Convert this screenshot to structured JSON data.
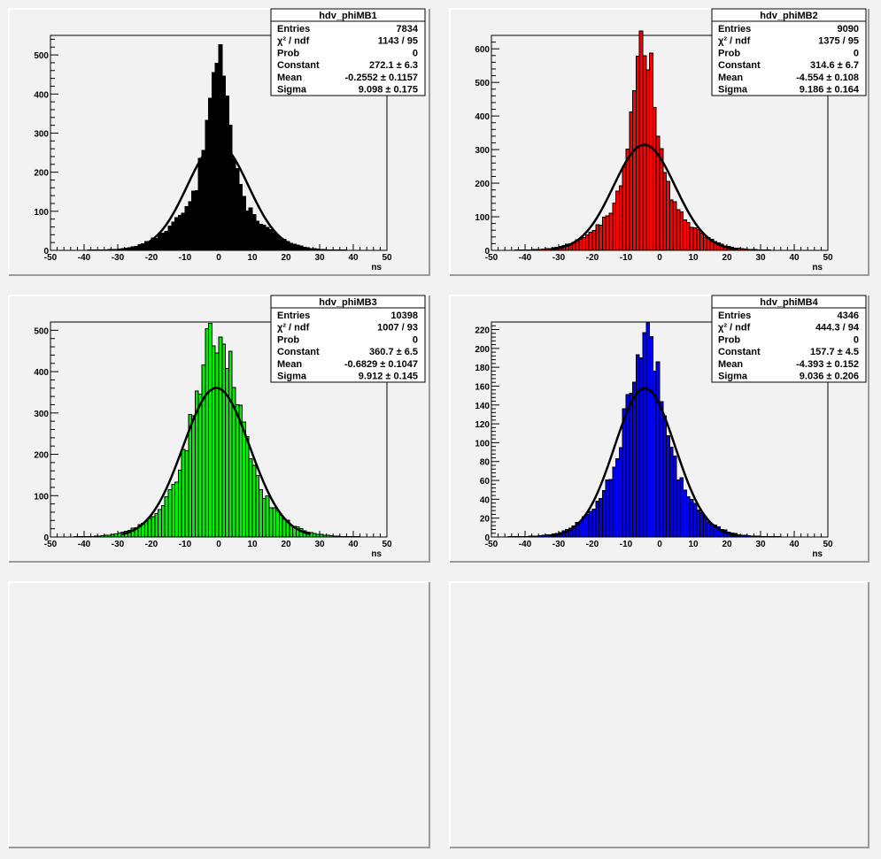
{
  "chart_data": [
    {
      "type": "histogram",
      "name": "hdv_phiMB1",
      "color": "#000000",
      "xlabel": "ns",
      "xlim": [
        -50,
        50
      ],
      "ylim": [
        0,
        550
      ],
      "yticks": [
        0,
        100,
        200,
        300,
        400,
        500
      ],
      "xticks": [
        -50,
        -40,
        -30,
        -20,
        -10,
        0,
        10,
        20,
        30,
        40,
        50
      ],
      "bin_width": 1,
      "center": -0.2552,
      "peak": 520,
      "core_sigma": 3.0,
      "fit": {
        "constant": 272.1,
        "mean": -0.2552,
        "sigma": 9.098
      },
      "stats": [
        {
          "label": "Entries",
          "value": "7834"
        },
        {
          "label": "χ² / ndf",
          "value": "1143 / 95"
        },
        {
          "label": "Prob",
          "value": "0"
        },
        {
          "label": "Constant",
          "value": "272.1 ± 6.3"
        },
        {
          "label": "Mean",
          "value": "-0.2552 ± 0.1157"
        },
        {
          "label": "Sigma",
          "value": "9.098 ± 0.175"
        }
      ]
    },
    {
      "type": "histogram",
      "name": "hdv_phiMB2",
      "color": "#ff0000",
      "xlabel": "ns",
      "xlim": [
        -50,
        50
      ],
      "ylim": [
        0,
        640
      ],
      "yticks": [
        0,
        100,
        200,
        300,
        400,
        500,
        600
      ],
      "xticks": [
        -50,
        -40,
        -30,
        -20,
        -10,
        0,
        10,
        20,
        30,
        40,
        50
      ],
      "bin_width": 1,
      "center": -4.554,
      "peak": 605,
      "core_sigma": 3.4,
      "fit": {
        "constant": 314.6,
        "mean": -4.554,
        "sigma": 9.186
      },
      "stats": [
        {
          "label": "Entries",
          "value": "9090"
        },
        {
          "label": "χ² / ndf",
          "value": "1375 / 95"
        },
        {
          "label": "Prob",
          "value": "0"
        },
        {
          "label": "Constant",
          "value": "314.6 ± 6.7"
        },
        {
          "label": "Mean",
          "value": "-4.554 ± 0.108"
        },
        {
          "label": "Sigma",
          "value": "9.186 ± 0.164"
        }
      ]
    },
    {
      "type": "histogram",
      "name": "hdv_phiMB3",
      "color": "#00ee00",
      "xlabel": "ns",
      "xlim": [
        -50,
        50
      ],
      "ylim": [
        0,
        520
      ],
      "yticks": [
        0,
        100,
        200,
        300,
        400,
        500
      ],
      "xticks": [
        -50,
        -40,
        -30,
        -20,
        -10,
        0,
        10,
        20,
        30,
        40,
        50
      ],
      "bin_width": 1,
      "center": -0.6829,
      "peak": 495,
      "core_sigma": 5.5,
      "fit": {
        "constant": 360.7,
        "mean": -0.6829,
        "sigma": 9.912
      },
      "stats": [
        {
          "label": "Entries",
          "value": "10398"
        },
        {
          "label": "χ² / ndf",
          "value": "1007 / 93"
        },
        {
          "label": "Prob",
          "value": "0"
        },
        {
          "label": "Constant",
          "value": "360.7 ± 6.5"
        },
        {
          "label": "Mean",
          "value": "-0.6829 ± 0.1047"
        },
        {
          "label": "Sigma",
          "value": "9.912 ± 0.145"
        }
      ]
    },
    {
      "type": "histogram",
      "name": "hdv_phiMB4",
      "color": "#0000ff",
      "xlabel": "ns",
      "xlim": [
        -50,
        50
      ],
      "ylim": [
        0,
        228
      ],
      "yticks": [
        0,
        20,
        40,
        60,
        80,
        100,
        120,
        140,
        160,
        180,
        200,
        220
      ],
      "xticks": [
        -50,
        -40,
        -30,
        -20,
        -10,
        0,
        10,
        20,
        30,
        40,
        50
      ],
      "bin_width": 1,
      "center": -4.393,
      "peak": 213,
      "core_sigma": 4.5,
      "fit": {
        "constant": 157.7,
        "mean": -4.393,
        "sigma": 9.036
      },
      "stats": [
        {
          "label": "Entries",
          "value": "4346"
        },
        {
          "label": "χ² / ndf",
          "value": "444.3 / 94"
        },
        {
          "label": "Prob",
          "value": "0"
        },
        {
          "label": "Constant",
          "value": "157.7 ± 4.5"
        },
        {
          "label": "Mean",
          "value": "-4.393 ± 0.152"
        },
        {
          "label": "Sigma",
          "value": "9.036 ± 0.206"
        }
      ]
    }
  ]
}
